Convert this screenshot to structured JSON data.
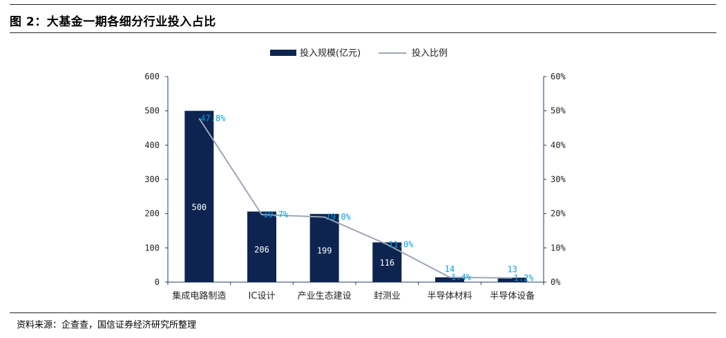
{
  "figure": {
    "title": "图 2：大基金一期各细分行业投入占比",
    "source": "资料来源：企查查，国信证券经济研究所整理"
  },
  "colors": {
    "bar": "#0d2450",
    "line": "#9aa6b6",
    "value_label": "#00a0e0",
    "axis": "#1f3a6b"
  },
  "chart_data": {
    "type": "bar",
    "title": "",
    "categories": [
      "集成电路制造",
      "IC设计",
      "产业生态建设",
      "封测业",
      "半导体材料",
      "半导体设备"
    ],
    "series": [
      {
        "name": "投入规模(亿元)",
        "type": "bar",
        "axis": "left",
        "values": [
          500,
          206,
          199,
          116,
          14,
          13
        ]
      },
      {
        "name": "投入比例",
        "type": "line",
        "axis": "right",
        "values": [
          47.8,
          19.7,
          19.0,
          11.0,
          1.4,
          1.2
        ]
      }
    ],
    "value_labels": [
      "500",
      "206",
      "199",
      "116",
      "14",
      "13"
    ],
    "percent_labels": [
      "47.8%",
      "19.7%",
      "19.0%",
      "11.0%",
      "1.4%",
      "1.2%"
    ],
    "y_left": {
      "ylim": [
        0,
        600
      ],
      "ticks": [
        "0",
        "100",
        "200",
        "300",
        "400",
        "500",
        "600"
      ]
    },
    "y_right": {
      "ylim": [
        0,
        60
      ],
      "ticks": [
        "0%",
        "10%",
        "20%",
        "30%",
        "40%",
        "50%",
        "60%"
      ]
    },
    "legend_position": "top-center",
    "grid": false
  }
}
